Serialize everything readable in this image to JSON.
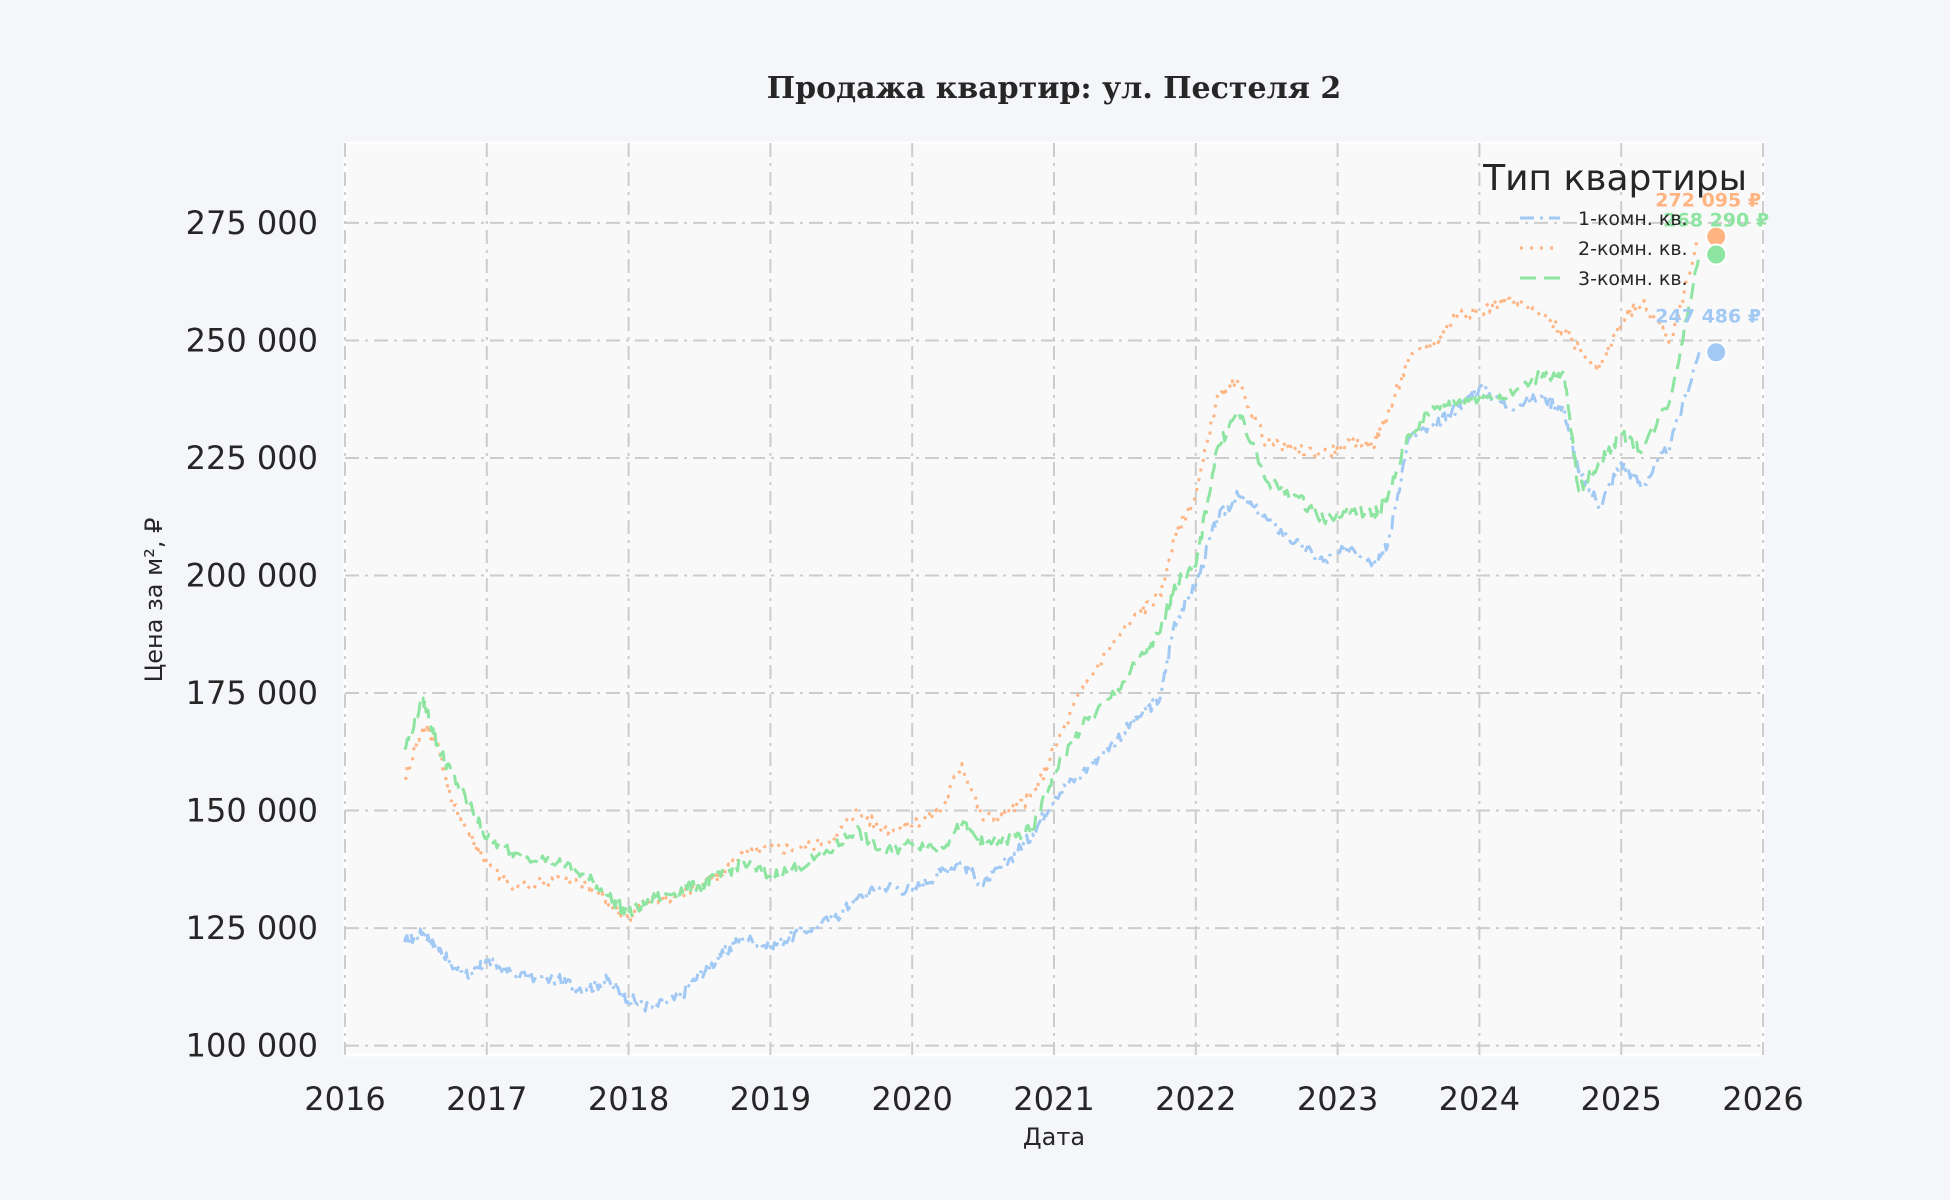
{
  "chart_data": {
    "type": "line",
    "title": "Продажа квартир: ул. Пестеля 2",
    "xlabel": "Дата",
    "ylabel": "Цена за м², ₽",
    "xlim": [
      2016.0,
      2026.0
    ],
    "ylim": [
      98000,
      292000
    ],
    "x_ticks": [
      "2016",
      "2017",
      "2018",
      "2019",
      "2020",
      "2021",
      "2022",
      "2023",
      "2024",
      "2025",
      "2026"
    ],
    "y_ticks": [
      100000,
      125000,
      150000,
      175000,
      200000,
      225000,
      250000,
      275000
    ],
    "y_tick_labels": [
      "100 000",
      "125 000",
      "150 000",
      "175 000",
      "200 000",
      "225 000",
      "250 000",
      "275 000"
    ],
    "grid": true,
    "legend": {
      "title": "Тип квартиры",
      "position": "top-right"
    },
    "series": [
      {
        "name": "1-комн. кв.",
        "color": "#a1c9f4",
        "dash": "dashdot",
        "x": [
          2016.42,
          2016.55,
          2016.65,
          2016.75,
          2016.9,
          2017.0,
          2017.2,
          2017.5,
          2017.7,
          2017.85,
          2018.0,
          2018.15,
          2018.35,
          2018.5,
          2018.65,
          2018.8,
          2019.0,
          2019.2,
          2019.45,
          2019.6,
          2019.8,
          2020.0,
          2020.2,
          2020.35,
          2020.5,
          2020.7,
          2020.85,
          2021.0,
          2021.2,
          2021.4,
          2021.6,
          2021.75,
          2021.85,
          2022.0,
          2022.15,
          2022.3,
          2022.5,
          2022.7,
          2022.9,
          2023.1,
          2023.25,
          2023.35,
          2023.5,
          2023.7,
          2023.85,
          2024.0,
          2024.2,
          2024.45,
          2024.6,
          2024.7,
          2024.85,
          2025.0,
          2025.15,
          2025.35,
          2025.55
        ],
        "y": [
          122000,
          124000,
          121000,
          117000,
          115000,
          118000,
          115000,
          114000,
          112000,
          114000,
          110000,
          108000,
          110000,
          115000,
          119000,
          123000,
          121000,
          124000,
          127000,
          131000,
          134000,
          133000,
          137000,
          139000,
          134000,
          140000,
          145000,
          153000,
          158000,
          164000,
          170000,
          174000,
          190000,
          198000,
          212000,
          217000,
          212000,
          207000,
          203000,
          206000,
          203000,
          206000,
          229000,
          232000,
          236000,
          240000,
          236000,
          238000,
          235000,
          222000,
          215000,
          224000,
          219000,
          228000,
          247486
        ]
      },
      {
        "name": "2-комн. кв.",
        "color": "#ffb482",
        "dash": "dotted",
        "x": [
          2016.42,
          2016.55,
          2016.65,
          2016.75,
          2016.9,
          2017.0,
          2017.2,
          2017.5,
          2017.7,
          2017.85,
          2018.0,
          2018.15,
          2018.35,
          2018.5,
          2018.65,
          2018.8,
          2019.0,
          2019.2,
          2019.45,
          2019.6,
          2019.8,
          2020.0,
          2020.2,
          2020.35,
          2020.5,
          2020.7,
          2020.85,
          2021.0,
          2021.2,
          2021.4,
          2021.6,
          2021.75,
          2021.85,
          2022.0,
          2022.15,
          2022.3,
          2022.5,
          2022.7,
          2022.9,
          2023.1,
          2023.25,
          2023.35,
          2023.5,
          2023.7,
          2023.85,
          2024.0,
          2024.2,
          2024.45,
          2024.6,
          2024.7,
          2024.85,
          2025.0,
          2025.15,
          2025.35,
          2025.55
        ],
        "y": [
          157000,
          168000,
          165000,
          152000,
          144000,
          139000,
          133000,
          136000,
          134000,
          131000,
          127000,
          131000,
          132000,
          134000,
          136000,
          141000,
          142000,
          142000,
          144000,
          150000,
          146000,
          147000,
          150000,
          160000,
          148000,
          150000,
          153000,
          163000,
          176000,
          185000,
          192000,
          196000,
          208000,
          217000,
          238000,
          241000,
          228000,
          227000,
          226000,
          228000,
          228000,
          234000,
          246000,
          250000,
          256000,
          256000,
          259000,
          255000,
          252000,
          248000,
          244000,
          254000,
          258000,
          250000,
          272095
        ]
      },
      {
        "name": "3-комн. кв.",
        "color": "#8de5a1",
        "dash": "dashed",
        "x": [
          2016.42,
          2016.55,
          2016.65,
          2016.75,
          2016.9,
          2017.0,
          2017.2,
          2017.5,
          2017.7,
          2017.85,
          2018.0,
          2018.15,
          2018.35,
          2018.5,
          2018.65,
          2018.8,
          2019.0,
          2019.2,
          2019.45,
          2019.6,
          2019.8,
          2020.0,
          2020.2,
          2020.35,
          2020.5,
          2020.7,
          2020.85,
          2021.0,
          2021.2,
          2021.4,
          2021.6,
          2021.75,
          2021.85,
          2022.0,
          2022.15,
          2022.3,
          2022.5,
          2022.7,
          2022.9,
          2023.1,
          2023.25,
          2023.35,
          2023.5,
          2023.7,
          2023.85,
          2024.0,
          2024.2,
          2024.45,
          2024.6,
          2024.7,
          2024.85,
          2025.0,
          2025.15,
          2025.35,
          2025.55
        ],
        "y": [
          163000,
          174000,
          164000,
          158000,
          150000,
          144000,
          141000,
          139000,
          136000,
          132000,
          128000,
          131000,
          133000,
          134000,
          136000,
          139000,
          136000,
          138000,
          142000,
          146000,
          141000,
          143000,
          142000,
          147000,
          143000,
          144000,
          146000,
          158000,
          168000,
          174000,
          182000,
          188000,
          198000,
          202000,
          227000,
          235000,
          220000,
          217000,
          212000,
          214000,
          213000,
          216000,
          230000,
          236000,
          237000,
          238000,
          238000,
          243000,
          242000,
          218000,
          224000,
          230000,
          227000,
          238000,
          268290
        ]
      }
    ],
    "end_labels": [
      "247 486 ₽",
      "272 095 ₽",
      "268 290 ₽"
    ]
  }
}
